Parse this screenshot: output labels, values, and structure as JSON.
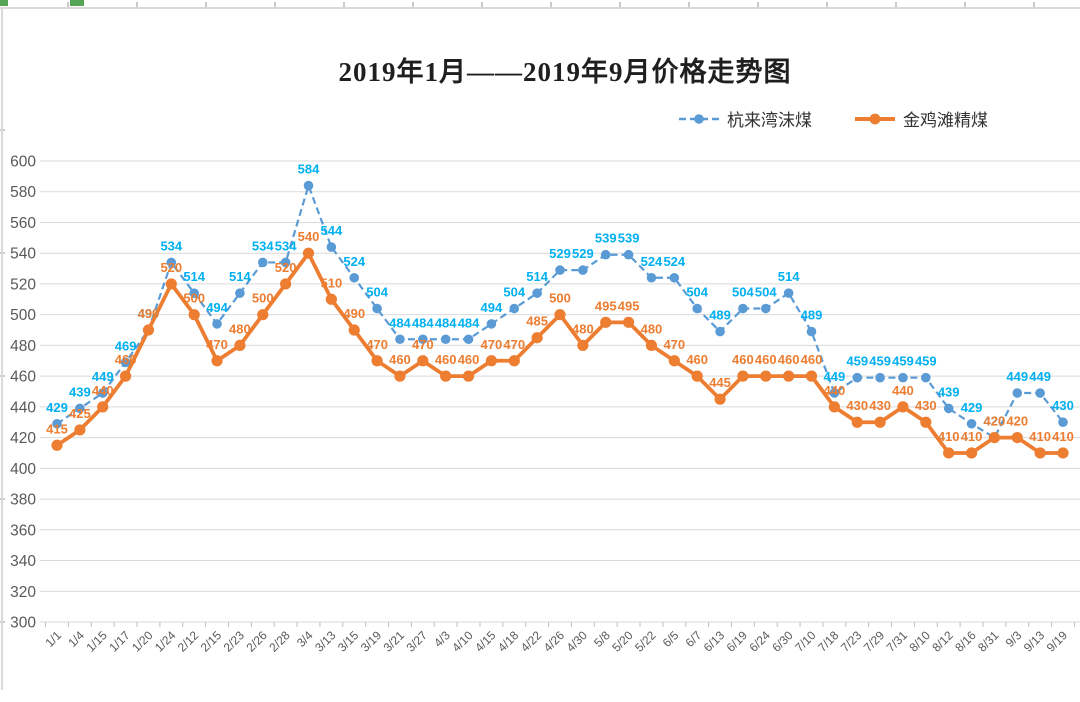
{
  "chart_data": {
    "type": "line",
    "title": "2019年1月——2019年9月价格走势图",
    "categories": [
      "1/1",
      "1/4",
      "1/15",
      "1/17",
      "1/20",
      "1/24",
      "2/12",
      "2/15",
      "2/23",
      "2/26",
      "2/28",
      "3/4",
      "3/13",
      "3/15",
      "3/19",
      "3/21",
      "3/27",
      "4/3",
      "4/10",
      "4/15",
      "4/18",
      "4/22",
      "4/26",
      "4/30",
      "5/8",
      "5/20",
      "5/22",
      "6/5",
      "6/7",
      "6/13",
      "6/19",
      "6/24",
      "6/30",
      "7/10",
      "7/18",
      "7/23",
      "7/29",
      "7/31",
      "8/10",
      "8/12",
      "8/16",
      "8/31",
      "9/3",
      "9/13",
      "9/19"
    ],
    "series": [
      {
        "name": "杭来湾沫煤",
        "line_style": "dashed",
        "marker": "circle",
        "color": "#5B9BD5",
        "label_color": "#00B0F0",
        "values": [
          429,
          439,
          449,
          469,
          490,
          534,
          514,
          494,
          514,
          534,
          534,
          584,
          544,
          524,
          504,
          484,
          484,
          484,
          484,
          494,
          504,
          514,
          529,
          529,
          539,
          539,
          524,
          524,
          504,
          489,
          504,
          504,
          514,
          489,
          449,
          459,
          459,
          459,
          459,
          439,
          429,
          420,
          449,
          449,
          430
        ]
      },
      {
        "name": "金鸡滩精煤",
        "line_style": "solid",
        "marker": "circle",
        "color": "#ED7D31",
        "label_color": "#ED7D31",
        "values": [
          415,
          425,
          440,
          460,
          490,
          520,
          500,
          470,
          480,
          500,
          520,
          540,
          510,
          490,
          470,
          460,
          470,
          460,
          460,
          470,
          470,
          485,
          500,
          480,
          495,
          495,
          480,
          470,
          460,
          445,
          460,
          460,
          460,
          460,
          440,
          430,
          430,
          440,
          430,
          410,
          410,
          420,
          420,
          410,
          410
        ]
      }
    ],
    "ylim": [
      300,
      600
    ],
    "ytick_step": 20,
    "yticks": [
      300,
      320,
      340,
      360,
      380,
      400,
      420,
      440,
      460,
      480,
      500,
      520,
      540,
      560,
      580,
      600
    ],
    "grid": true,
    "legend_position": "top-right",
    "axis_text_color": "#595959",
    "grid_color": "#D9D9D9",
    "tick_color": "#BFBFBF",
    "data_labels": true
  }
}
